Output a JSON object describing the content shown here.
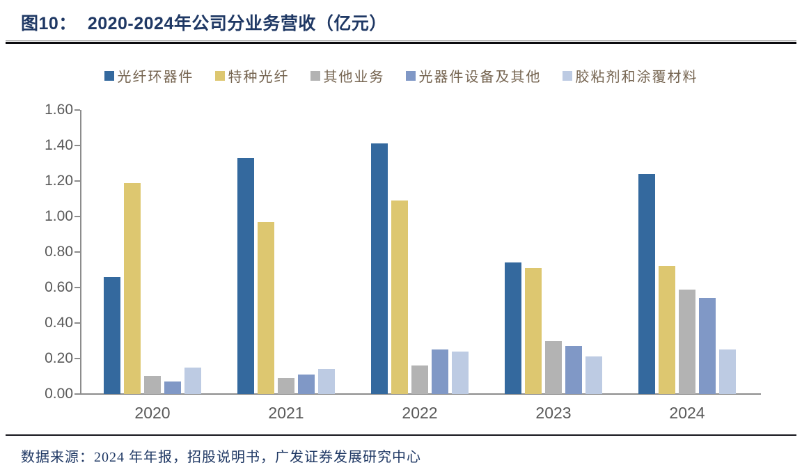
{
  "title": {
    "prefix": "图10：",
    "text": "2020-2024年公司分业务营收（亿元）"
  },
  "source_note": "数据来源：2024 年年报，招股说明书，广发证券发展研究中心",
  "colors": {
    "title_navy": "#1F3864",
    "legend_text": "#756450",
    "axis_line": "#8c8c8c",
    "axis_label": "#595959",
    "separator_black": "#0b0b0f"
  },
  "chart_data": {
    "type": "bar",
    "title": "2020-2024年公司分业务营收（亿元）",
    "categories": [
      "2020",
      "2021",
      "2022",
      "2023",
      "2024"
    ],
    "series": [
      {
        "name": "光纤环器件",
        "color": "#34699E",
        "values": [
          0.66,
          1.33,
          1.41,
          0.74,
          1.24
        ]
      },
      {
        "name": "特种光纤",
        "color": "#DDC770",
        "values": [
          1.19,
          0.97,
          1.09,
          0.71,
          0.72
        ]
      },
      {
        "name": "其他业务",
        "color": "#B3B3B3",
        "values": [
          0.1,
          0.09,
          0.16,
          0.3,
          0.59
        ]
      },
      {
        "name": "光器件设备及其他",
        "color": "#8098C6",
        "values": [
          0.07,
          0.11,
          0.25,
          0.27,
          0.54
        ]
      },
      {
        "name": "胶粘剂和涂覆材料",
        "color": "#BDCBE3",
        "values": [
          0.15,
          0.14,
          0.24,
          0.21,
          0.25
        ]
      }
    ],
    "ylim": [
      0,
      1.6
    ],
    "ytick_step": 0.2,
    "ytick_labels": [
      "0.00",
      "0.20",
      "0.40",
      "0.60",
      "0.80",
      "1.00",
      "1.20",
      "1.40",
      "1.60"
    ],
    "grid": false,
    "legend_position": "top"
  }
}
